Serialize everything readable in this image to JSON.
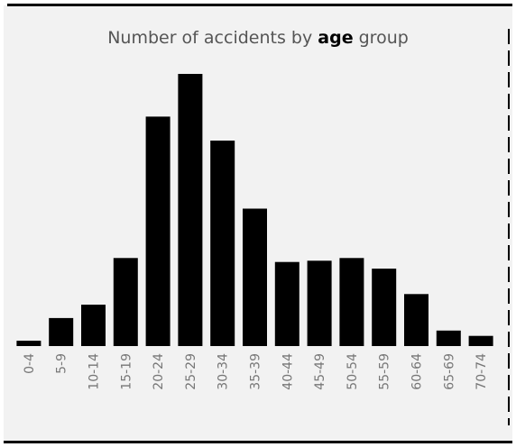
{
  "title": {
    "prefix": "Number of accidents by",
    "highlight": "age",
    "suffix": "group"
  },
  "colors": {
    "background": "#f2f2f2",
    "bar": "#000000",
    "tick_label": "#777777",
    "title": "#555555"
  },
  "chart_data": {
    "type": "bar",
    "title": "Number of accidents by age group",
    "xlabel": "",
    "ylabel": "",
    "categories": [
      "0-4",
      "5-9",
      "10-14",
      "15-19",
      "20-24",
      "25-29",
      "30-34",
      "35-39",
      "40-44",
      "45-49",
      "50-54",
      "55-59",
      "60-64",
      "65-69",
      "70-74"
    ],
    "values": [
      2,
      10.5,
      15.5,
      33,
      86,
      102,
      77,
      51.5,
      31.5,
      32,
      33,
      29,
      19.5,
      5.8,
      3.8
    ],
    "ylim": [
      0,
      105
    ],
    "grid": false,
    "legend": "none"
  }
}
